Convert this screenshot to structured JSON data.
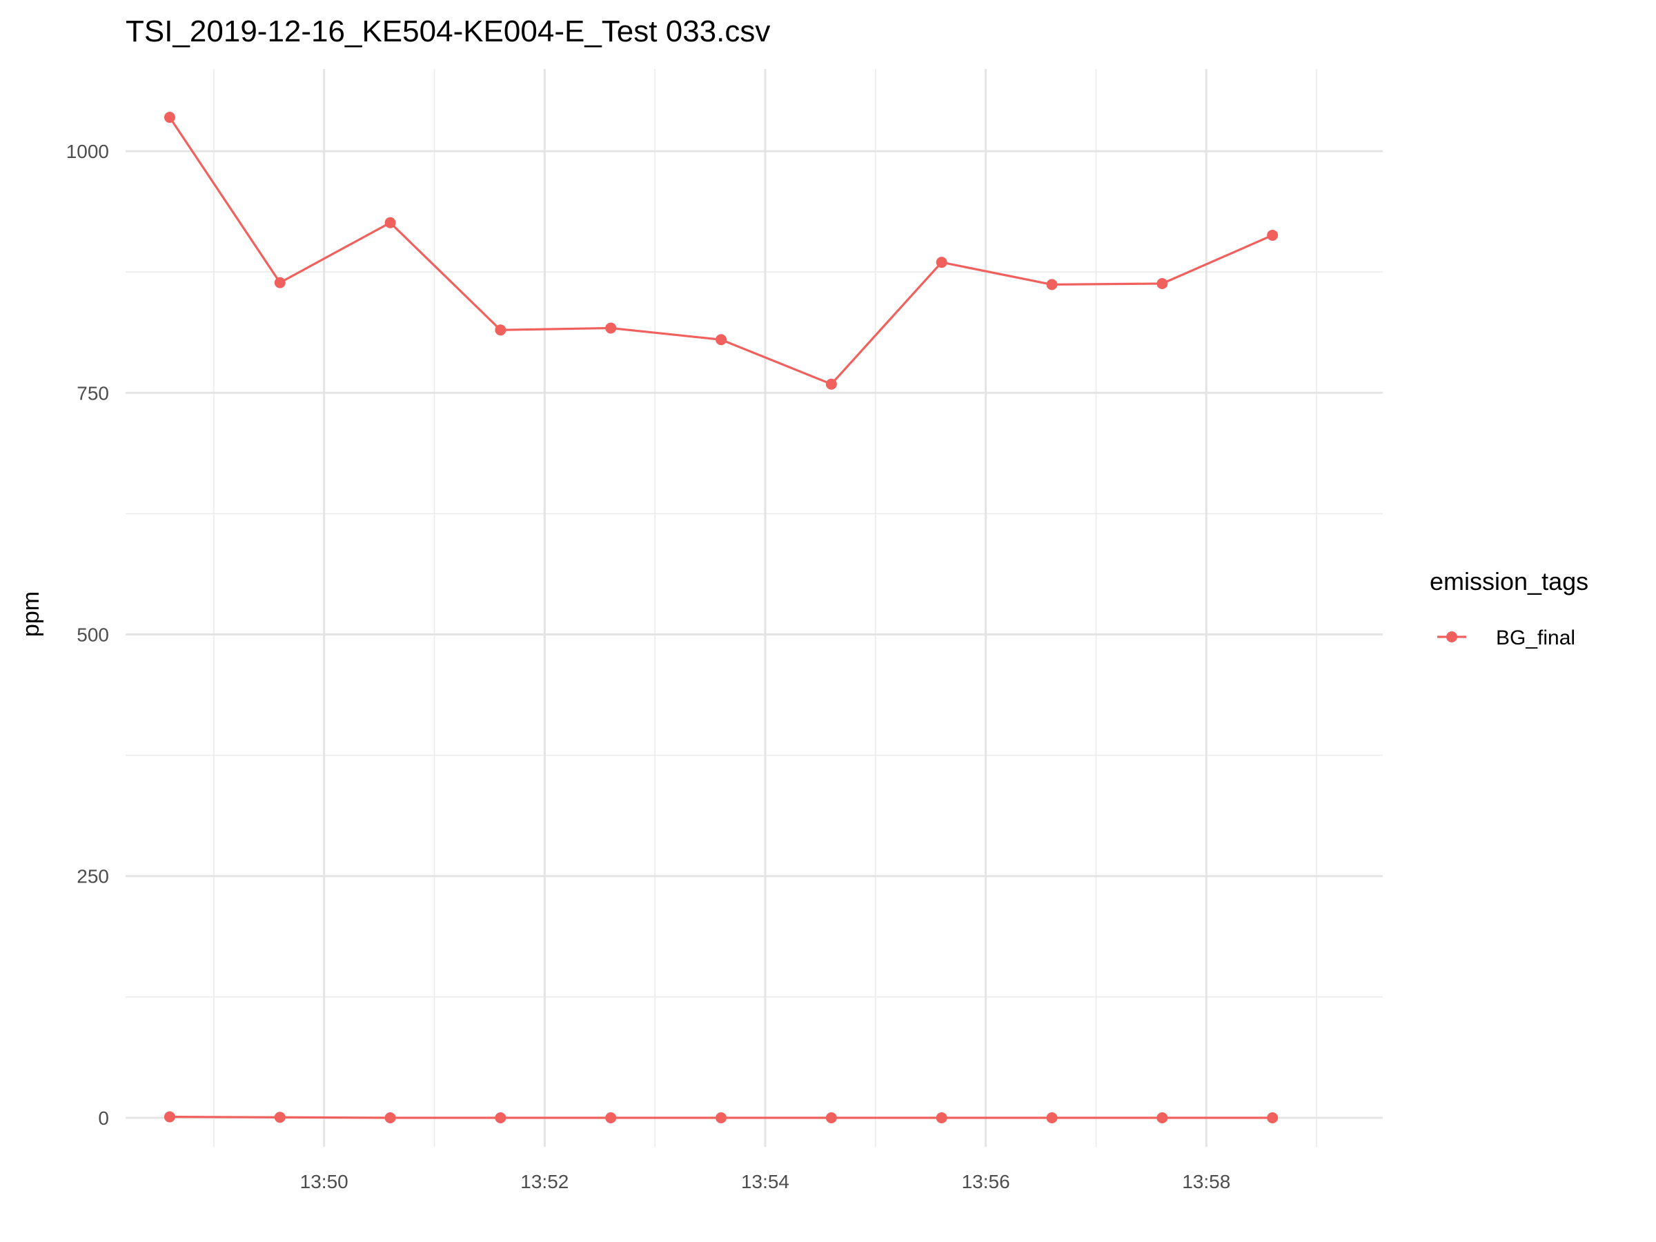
{
  "chart_data": {
    "type": "line",
    "title": "TSI_2019-12-16_KE504-KE004-E_Test 033.csv",
    "xlabel": "",
    "ylabel": "ppm",
    "x_tick_labels": [
      "13:50",
      "13:52",
      "13:54",
      "13:56",
      "13:58"
    ],
    "x_tick_minutes": [
      830,
      832,
      834,
      836,
      838
    ],
    "xlim_minutes": [
      828.2,
      839.6
    ],
    "y_ticks": [
      0,
      250,
      500,
      750,
      1000
    ],
    "ylim": [
      -30,
      1085
    ],
    "grid": true,
    "legend": {
      "title": "emission_tags",
      "position": "right",
      "entries": [
        "BG_final"
      ]
    },
    "color": "#F0605D",
    "x_minutes": [
      828.6,
      829.6,
      830.6,
      831.6,
      832.6,
      833.6,
      834.6,
      835.6,
      836.6,
      837.6,
      838.6
    ],
    "series": [
      {
        "name": "BG_final",
        "segments": [
          [
            1035,
            864,
            926,
            815,
            817,
            805,
            759,
            885,
            862,
            863,
            913
          ],
          [
            1,
            0.5,
            0,
            0,
            0,
            0,
            0,
            0,
            0,
            0,
            0
          ]
        ]
      }
    ]
  }
}
